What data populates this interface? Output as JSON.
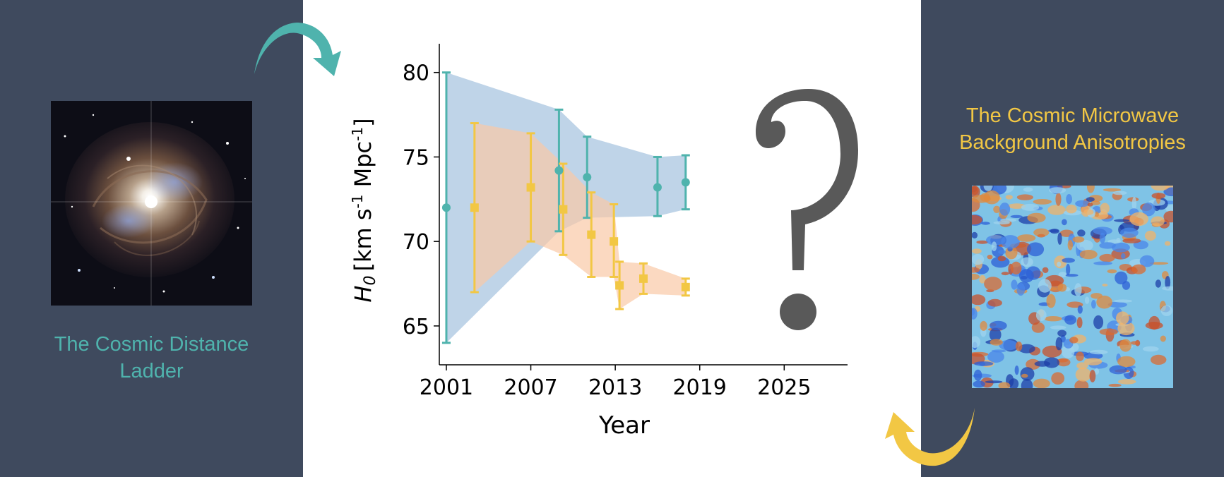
{
  "left_panel": {
    "caption_line1": "The Cosmic Distance",
    "caption_line2": "Ladder",
    "caption_color": "#4fb3ad"
  },
  "right_panel": {
    "caption_line1": "The Cosmic Microwave",
    "caption_line2": "Background Anisotropies",
    "caption_color": "#f2c744"
  },
  "colors": {
    "panel_background": "#3f4a5e",
    "teal": "#4fb3ad",
    "yellow": "#f2c744",
    "blue_band": "#b4cce4",
    "orange_band": "#f9c9a6",
    "question_mark": "#595959"
  },
  "question_mark": {
    "icon": "question-mark-icon",
    "text": "?"
  },
  "chart_data": {
    "type": "scatter",
    "xlabel": "Year",
    "ylabel_main": "H",
    "ylabel_sub": "0",
    "ylabel_unit": "[km s",
    "ylabel_unit_exp1": "-1",
    "ylabel_unit_mid": " Mpc",
    "ylabel_unit_exp2": "-1",
    "ylabel_unit_end": "]",
    "xlim": [
      2000.5,
      2029.5
    ],
    "ylim": [
      62.7,
      81.7
    ],
    "x_ticks": [
      2001,
      2007,
      2013,
      2019,
      2025
    ],
    "y_ticks": [
      65,
      70,
      75,
      80
    ],
    "grid": false,
    "series": [
      {
        "marker": "circle",
        "color": "#4fb3ad",
        "band_color": "#b4cce4",
        "points": [
          {
            "x": 2001,
            "y": 72.0,
            "lo": 64.0,
            "hi": 80.0
          },
          {
            "x": 2009,
            "y": 74.2,
            "lo": 70.6,
            "hi": 77.8
          },
          {
            "x": 2011,
            "y": 73.8,
            "lo": 71.4,
            "hi": 76.2
          },
          {
            "x": 2016,
            "y": 73.2,
            "lo": 71.5,
            "hi": 75.0
          },
          {
            "x": 2018,
            "y": 73.5,
            "lo": 71.9,
            "hi": 75.1
          }
        ]
      },
      {
        "marker": "square",
        "color": "#f2c744",
        "band_color": "#f9c9a6",
        "points": [
          {
            "x": 2003,
            "y": 72.0,
            "lo": 67.0,
            "hi": 77.0
          },
          {
            "x": 2007,
            "y": 73.2,
            "lo": 70.0,
            "hi": 76.4
          },
          {
            "x": 2009.3,
            "y": 71.9,
            "lo": 69.2,
            "hi": 74.6
          },
          {
            "x": 2011.3,
            "y": 70.4,
            "lo": 67.9,
            "hi": 72.9
          },
          {
            "x": 2012.9,
            "y": 70.0,
            "lo": 67.9,
            "hi": 72.2
          },
          {
            "x": 2013.3,
            "y": 67.4,
            "lo": 66.0,
            "hi": 68.8
          },
          {
            "x": 2015,
            "y": 67.8,
            "lo": 66.9,
            "hi": 68.7
          },
          {
            "x": 2018,
            "y": 67.3,
            "lo": 66.8,
            "hi": 67.8
          }
        ]
      }
    ]
  }
}
